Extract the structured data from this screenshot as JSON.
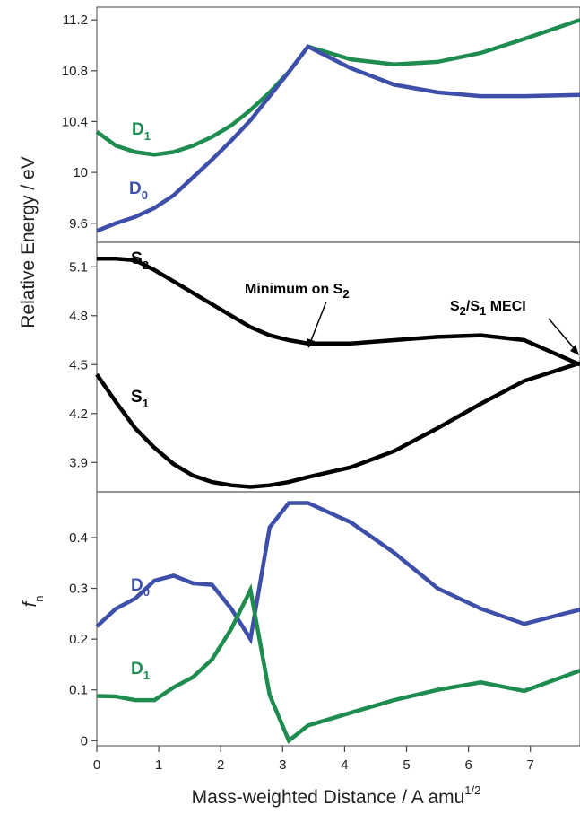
{
  "chart_data": [
    {
      "type": "line",
      "panel": "top",
      "ylim": [
        9.45,
        11.3
      ],
      "yticks": [
        "9.6",
        "10",
        "10.4",
        "10.8",
        "11.2"
      ],
      "x": [
        0,
        0.31,
        0.62,
        0.93,
        1.24,
        1.55,
        1.86,
        2.17,
        2.48,
        2.79,
        3.1,
        3.41,
        4.1,
        4.8,
        5.5,
        6.2,
        6.9,
        7.8
      ],
      "series": [
        {
          "name": "D",
          "name_sub": "1",
          "color": "#1e8c4e",
          "values": [
            10.32,
            10.21,
            10.16,
            10.14,
            10.16,
            10.21,
            10.28,
            10.37,
            10.49,
            10.63,
            10.79,
            10.99,
            10.89,
            10.85,
            10.87,
            10.94,
            11.05,
            11.2
          ]
        },
        {
          "name": "D",
          "name_sub": "0",
          "color": "#3d4fa8",
          "values": [
            9.54,
            9.6,
            9.65,
            9.72,
            9.82,
            9.96,
            10.1,
            10.25,
            10.41,
            10.6,
            10.79,
            10.99,
            10.82,
            10.69,
            10.63,
            10.6,
            10.6,
            10.61
          ]
        }
      ]
    },
    {
      "type": "line",
      "panel": "middle",
      "ylim": [
        3.72,
        5.25
      ],
      "yticks": [
        "3.9",
        "4.2",
        "4.5",
        "4.8",
        "5.1"
      ],
      "x": [
        0,
        0.31,
        0.62,
        0.93,
        1.24,
        1.55,
        1.86,
        2.17,
        2.48,
        2.79,
        3.1,
        3.41,
        4.1,
        4.8,
        5.5,
        6.2,
        6.9,
        7.8
      ],
      "series": [
        {
          "name": "S",
          "name_sub": "2",
          "color": "#000000",
          "values": [
            5.15,
            5.15,
            5.14,
            5.08,
            5.01,
            4.94,
            4.87,
            4.8,
            4.73,
            4.68,
            4.65,
            4.63,
            4.63,
            4.65,
            4.67,
            4.68,
            4.65,
            4.5
          ]
        },
        {
          "name": "S",
          "name_sub": "1",
          "color": "#000000",
          "values": [
            4.44,
            4.27,
            4.11,
            3.99,
            3.89,
            3.82,
            3.78,
            3.76,
            3.75,
            3.76,
            3.78,
            3.81,
            3.87,
            3.97,
            4.11,
            4.26,
            4.4,
            4.51
          ]
        }
      ],
      "annotations": [
        {
          "text": "Minimum on S",
          "text_sub": "2",
          "point": [
            3.3,
            4.64
          ]
        },
        {
          "text": "S",
          "text_sub": "2",
          "text_mid": "/S",
          "text_sub2": "1",
          "text_end": " MECI",
          "point": [
            7.78,
            4.5
          ]
        }
      ]
    },
    {
      "type": "line",
      "panel": "bottom",
      "ylim": [
        -0.01,
        0.49
      ],
      "yticks": [
        "0",
        "0.1",
        "0.2",
        "0.3",
        "0.4"
      ],
      "xlim": [
        0,
        7.8
      ],
      "xticks": [
        "0",
        "1",
        "2",
        "3",
        "4",
        "5",
        "6",
        "7"
      ],
      "x": [
        0,
        0.31,
        0.62,
        0.93,
        1.24,
        1.55,
        1.86,
        2.17,
        2.48,
        2.79,
        3.1,
        3.41,
        4.1,
        4.8,
        5.5,
        6.2,
        6.9,
        7.8
      ],
      "series": [
        {
          "name": "D",
          "name_sub": "0",
          "color": "#3d4fa8",
          "values": [
            0.225,
            0.26,
            0.28,
            0.315,
            0.325,
            0.31,
            0.307,
            0.26,
            0.2,
            0.42,
            0.468,
            0.468,
            0.43,
            0.37,
            0.3,
            0.26,
            0.23,
            0.258
          ]
        },
        {
          "name": "D",
          "name_sub": "1",
          "color": "#1e8c4e",
          "values": [
            0.088,
            0.087,
            0.08,
            0.08,
            0.105,
            0.125,
            0.16,
            0.22,
            0.297,
            0.09,
            0.0,
            0.03,
            0.055,
            0.08,
            0.1,
            0.115,
            0.098,
            0.138
          ]
        }
      ]
    }
  ],
  "axes": {
    "ylabel_top": "Relative Energy / eV",
    "ylabel_bottom_main": "f",
    "ylabel_bottom_sub": "n",
    "xlabel_main": "Mass-weighted Distance / A amu",
    "xlabel_sup": "1/2"
  }
}
